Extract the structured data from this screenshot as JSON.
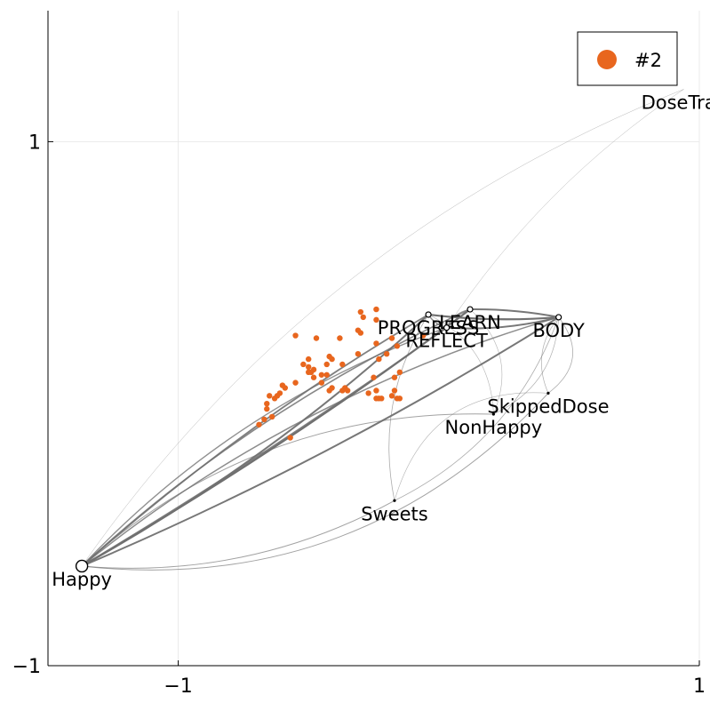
{
  "chart_data": {
    "type": "scatter",
    "title": "",
    "xlabel": "",
    "ylabel": "",
    "xlim": [
      -1.5,
      1.0
    ],
    "ylim": [
      -1.0,
      1.5
    ],
    "grid": true,
    "legend_position": "top-right",
    "x_ticks": [
      {
        "value": -1,
        "label": "−1"
      },
      {
        "value": 1,
        "label": "1"
      }
    ],
    "y_ticks": [
      {
        "value": -1,
        "label": "−1"
      },
      {
        "value": 1,
        "label": "1"
      }
    ],
    "colors": {
      "series": "#e8661e",
      "edge": "#707070",
      "axis": "#000000"
    },
    "nodes": [
      {
        "id": "Happy",
        "label": "Happy",
        "x": -1.37,
        "y": -0.62,
        "marker": "large",
        "label_pos": "below"
      },
      {
        "id": "PROGRESS",
        "label": "PROGRESS",
        "x": -0.04,
        "y": 0.34,
        "marker": "small",
        "label_pos": "below"
      },
      {
        "id": "LEARN",
        "label": "LEARN",
        "x": 0.12,
        "y": 0.36,
        "marker": "small",
        "label_pos": "below"
      },
      {
        "id": "BODY",
        "label": "BODY",
        "x": 0.46,
        "y": 0.33,
        "marker": "small",
        "label_pos": "below"
      },
      {
        "id": "REFLECT",
        "label": "REFLECT",
        "x": 0.03,
        "y": 0.29,
        "marker": "small",
        "label_pos": "below"
      },
      {
        "id": "SkippedDose",
        "label": "SkippedDose",
        "x": 0.42,
        "y": 0.04,
        "marker": "tiny",
        "label_pos": "below"
      },
      {
        "id": "NonHappy",
        "label": "NonHappy",
        "x": 0.21,
        "y": -0.04,
        "marker": "tiny",
        "label_pos": "below"
      },
      {
        "id": "Sweets",
        "label": "Sweets",
        "x": -0.17,
        "y": -0.37,
        "marker": "tiny",
        "label_pos": "below"
      },
      {
        "id": "DoseTracker",
        "label": "DoseTrac",
        "x": 0.94,
        "y": 1.2,
        "marker": "none",
        "label_pos": "below"
      }
    ],
    "edges": [
      {
        "from": "Happy",
        "to": "PROGRESS",
        "weight": 2.0,
        "bend": 0.06
      },
      {
        "from": "Happy",
        "to": "PROGRESS",
        "weight": 1.8,
        "bend": -0.05
      },
      {
        "from": "Happy",
        "to": "LEARN",
        "weight": 2.2,
        "bend": 0.03
      },
      {
        "from": "Happy",
        "to": "LEARN",
        "weight": 1.6,
        "bend": -0.08
      },
      {
        "from": "Happy",
        "to": "BODY",
        "weight": 2.0,
        "bend": 0.04
      },
      {
        "from": "Happy",
        "to": "BODY",
        "weight": 1.5,
        "bend": -0.1
      },
      {
        "from": "Happy",
        "to": "REFLECT",
        "weight": 1.8,
        "bend": 0.02
      },
      {
        "from": "Happy",
        "to": "REFLECT",
        "weight": 1.4,
        "bend": -0.12
      },
      {
        "from": "PROGRESS",
        "to": "BODY",
        "weight": 2.2,
        "bend": 0.05
      },
      {
        "from": "LEARN",
        "to": "BODY",
        "weight": 2.0,
        "bend": -0.05
      },
      {
        "from": "REFLECT",
        "to": "BODY",
        "weight": 2.0,
        "bend": 0.08
      },
      {
        "from": "PROGRESS",
        "to": "REFLECT",
        "weight": 1.5,
        "bend": 0.2
      },
      {
        "from": "LEARN",
        "to": "REFLECT",
        "weight": 1.2,
        "bend": 0.25
      },
      {
        "from": "Happy",
        "to": "Sweets",
        "weight": 1.0,
        "bend": 0.15
      },
      {
        "from": "Happy",
        "to": "NonHappy",
        "weight": 1.0,
        "bend": -0.2
      },
      {
        "from": "Happy",
        "to": "SkippedDose",
        "weight": 1.0,
        "bend": 0.25
      },
      {
        "from": "Sweets",
        "to": "BODY",
        "weight": 0.8,
        "bend": 0.2
      },
      {
        "from": "NonHappy",
        "to": "BODY",
        "weight": 0.7,
        "bend": 0.3
      },
      {
        "from": "SkippedDose",
        "to": "BODY",
        "weight": 0.7,
        "bend": -0.3
      },
      {
        "from": "Sweets",
        "to": "PROGRESS",
        "weight": 0.8,
        "bend": -0.2
      },
      {
        "from": "NonHappy",
        "to": "LEARN",
        "weight": 0.6,
        "bend": 0.35
      },
      {
        "from": "Sweets",
        "to": "SkippedDose",
        "weight": 0.6,
        "bend": -0.4
      },
      {
        "from": "Happy",
        "to": "DoseTracker",
        "weight": 0.5,
        "bend": -0.15
      },
      {
        "from": "DoseTracker",
        "to": "REFLECT",
        "weight": 0.5,
        "bend": 0.1
      },
      {
        "from": "PROGRESS",
        "to": "NonHappy",
        "weight": 0.6,
        "bend": -0.3
      },
      {
        "from": "BODY",
        "to": "SkippedDose",
        "weight": 0.8,
        "bend": -0.5
      }
    ],
    "series": [
      {
        "name": "#2",
        "color": "#e8661e",
        "points": [
          [
            -0.3,
            0.35
          ],
          [
            -0.24,
            0.36
          ],
          [
            -0.29,
            0.33
          ],
          [
            -0.24,
            0.32
          ],
          [
            -0.31,
            0.28
          ],
          [
            -0.3,
            0.27
          ],
          [
            -0.55,
            0.26
          ],
          [
            -0.47,
            0.25
          ],
          [
            -0.38,
            0.25
          ],
          [
            -0.42,
            0.18
          ],
          [
            -0.43,
            0.15
          ],
          [
            -0.37,
            0.15
          ],
          [
            -0.24,
            0.23
          ],
          [
            -0.18,
            0.25
          ],
          [
            -0.06,
            0.26
          ],
          [
            -0.16,
            0.22
          ],
          [
            -0.15,
            0.12
          ],
          [
            -0.17,
            0.1
          ],
          [
            -0.31,
            0.19
          ],
          [
            -0.23,
            0.17
          ],
          [
            -0.25,
            0.1
          ],
          [
            -0.22,
            0.02
          ],
          [
            -0.27,
            0.04
          ],
          [
            -0.23,
            0.02
          ],
          [
            -0.24,
            0.05
          ],
          [
            -0.24,
            0.02
          ],
          [
            -0.18,
            0.03
          ],
          [
            -0.16,
            0.02
          ],
          [
            -0.17,
            0.05
          ],
          [
            -0.15,
            0.02
          ],
          [
            -0.2,
            0.19
          ],
          [
            -0.41,
            0.17
          ],
          [
            -0.5,
            0.17
          ],
          [
            -0.52,
            0.15
          ],
          [
            -0.5,
            0.14
          ],
          [
            -0.5,
            0.12
          ],
          [
            -0.49,
            0.12
          ],
          [
            -0.48,
            0.13
          ],
          [
            -0.48,
            0.1
          ],
          [
            -0.45,
            0.08
          ],
          [
            -0.45,
            0.11
          ],
          [
            -0.43,
            0.11
          ],
          [
            -0.41,
            0.06
          ],
          [
            -0.37,
            0.05
          ],
          [
            -0.36,
            0.06
          ],
          [
            -0.35,
            0.05
          ],
          [
            -0.42,
            0.05
          ],
          [
            -0.55,
            0.08
          ],
          [
            -0.59,
            0.06
          ],
          [
            -0.6,
            0.07
          ],
          [
            -0.61,
            0.04
          ],
          [
            -0.65,
            0.03
          ],
          [
            -0.62,
            0.03
          ],
          [
            -0.63,
            0.02
          ],
          [
            -0.66,
            0.0
          ],
          [
            -0.66,
            -0.02
          ],
          [
            -0.67,
            -0.06
          ],
          [
            -0.64,
            -0.05
          ],
          [
            -0.69,
            -0.08
          ],
          [
            -0.57,
            -0.13
          ]
        ]
      }
    ]
  }
}
